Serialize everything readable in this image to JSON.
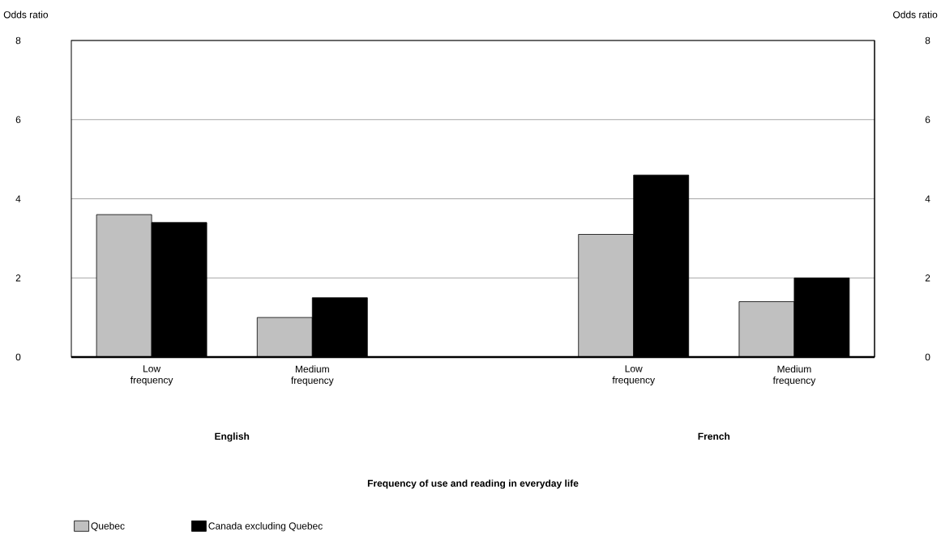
{
  "chart_data": {
    "type": "bar",
    "ylabel": "Odds ratio",
    "y2label": "Odds ratio",
    "categories": [
      "Low frequency",
      "Medium frequency",
      null,
      "Low frequency",
      "Medium frequency"
    ],
    "series": [
      {
        "name": "Quebec",
        "color": "#c0c0c0",
        "values": [
          3.6,
          1.0,
          null,
          3.1,
          1.4
        ]
      },
      {
        "name": "Canada excluding Quebec",
        "color": "#000000",
        "values": [
          3.4,
          1.5,
          null,
          4.6,
          2.0
        ]
      }
    ],
    "annotations": [
      "English",
      "French",
      "Frequency of use and reading in everyday life"
    ],
    "ylim": [
      0,
      8
    ],
    "yticks": [
      0,
      2,
      4,
      6,
      8
    ],
    "y2lim": [
      0,
      8
    ],
    "y2ticks": [
      0,
      2,
      4,
      6,
      8
    ],
    "grid": "y",
    "legend": "bottom left"
  }
}
